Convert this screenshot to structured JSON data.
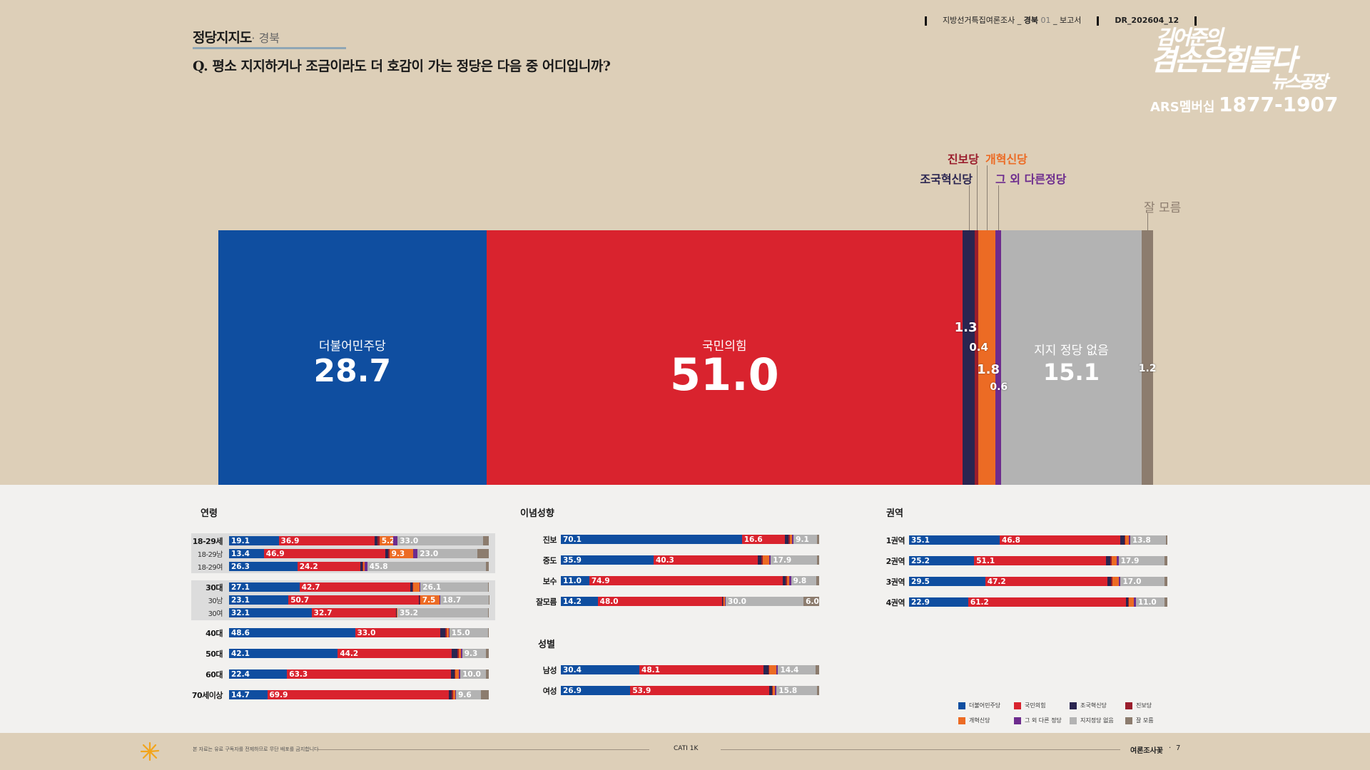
{
  "header": {
    "title": "정당지지도",
    "subtitle": "· 경북",
    "question": "Q. 평소 지지하거나 조금이라도 더 호감이 가는 정당은 다음 중 어디입니까?",
    "meta_survey": "지방선거특집여론조사 _",
    "meta_region": "경북",
    "meta_num": "01",
    "meta_report": "_ 보고서",
    "meta_code": "DR_202604_12"
  },
  "logo": {
    "line1": "김어준의",
    "line2": "겸손은힘들다",
    "line3": "뉴스공장",
    "ars_label": "ARS멤버십",
    "ars_number": "1877-1907"
  },
  "colors": {
    "minjoo": "#0f4ea0",
    "ppp": "#d9232e",
    "jokuk": "#2a2550",
    "jinbo": "#9a1d2c",
    "gaehyuk": "#ec6b24",
    "other": "#6d2c8e",
    "none": "#b3b3b3",
    "dk": "#8c7c6e"
  },
  "chart_data": [
    {
      "type": "bar",
      "stacked": true,
      "orientation": "horizontal",
      "series": [
        {
          "key": "minjoo",
          "name": "더불어민주당",
          "value": 28.7
        },
        {
          "key": "ppp",
          "name": "국민의힘",
          "value": 51.0
        },
        {
          "key": "jokuk",
          "name": "조국혁신당",
          "value": 1.3
        },
        {
          "key": "jinbo",
          "name": "진보당",
          "value": 0.4
        },
        {
          "key": "gaehyuk",
          "name": "개혁신당",
          "value": 1.8
        },
        {
          "key": "other",
          "name": "그 외 다른정당",
          "value": 0.6
        },
        {
          "key": "none",
          "name": "지지 정당 없음",
          "value": 15.1
        },
        {
          "key": "dk",
          "name": "잘 모름",
          "value": 1.2
        }
      ]
    },
    {
      "type": "bar",
      "stacked": true,
      "title": "연령",
      "rows": [
        {
          "label": "18-29세",
          "values": [
            19.1,
            36.9,
            1.2,
            0.7,
            5.2,
            1.8,
            33.0,
            2.1
          ]
        },
        {
          "label": "18-29남",
          "sub": true,
          "values": [
            13.4,
            46.9,
            0.9,
            0.5,
            9.3,
            1.6,
            23.0,
            4.4
          ]
        },
        {
          "label": "18-29여",
          "sub": true,
          "values": [
            26.3,
            24.2,
            0.8,
            0.4,
            0.5,
            1.0,
            45.8,
            1.0
          ]
        },
        {
          "label": "30대",
          "values": [
            27.1,
            42.7,
            0.8,
            0.2,
            2.6,
            0.3,
            26.1,
            0.2
          ]
        },
        {
          "label": "30남",
          "sub": true,
          "values": [
            23.1,
            50.7,
            0.4,
            0.1,
            7.5,
            0.4,
            18.7,
            0.1
          ]
        },
        {
          "label": "30여",
          "sub": true,
          "values": [
            32.1,
            32.7,
            0.3,
            0.1,
            0.2,
            0.1,
            35.2,
            0.3
          ]
        },
        {
          "label": "40대",
          "values": [
            48.6,
            33.0,
            1.9,
            0.5,
            0.8,
            0.2,
            15.0,
            0.2
          ]
        },
        {
          "label": "50대",
          "values": [
            42.1,
            44.2,
            2.2,
            0.4,
            0.9,
            0.5,
            9.3,
            1.0
          ]
        },
        {
          "label": "60대",
          "values": [
            22.4,
            63.3,
            1.3,
            0.3,
            1.5,
            0.5,
            10.0,
            1.0
          ]
        },
        {
          "label": "70세이상",
          "values": [
            14.7,
            69.9,
            1.2,
            0.4,
            0.8,
            0.4,
            9.6,
            3.0
          ]
        }
      ],
      "labels_shown": [
        [
          "19.1",
          "36.9",
          "",
          "",
          "5.2",
          "",
          "33.0",
          ""
        ],
        [
          "13.4",
          "46.9",
          "",
          "",
          "9.3",
          "",
          "23.0",
          ""
        ],
        [
          "26.3",
          "24.2",
          "",
          "",
          "",
          "",
          "45.8",
          ""
        ],
        [
          "27.1",
          "42.7",
          "",
          "",
          "",
          "",
          "26.1",
          ""
        ],
        [
          "23.1",
          "50.7",
          "",
          "",
          "7.5",
          "",
          "18.7",
          ""
        ],
        [
          "32.1",
          "32.7",
          "",
          "",
          "",
          "",
          "35.2",
          ""
        ],
        [
          "48.6",
          "33.0",
          "",
          "",
          "",
          "",
          "15.0",
          ""
        ],
        [
          "42.1",
          "44.2",
          "",
          "",
          "",
          "",
          "9.3",
          ""
        ],
        [
          "22.4",
          "63.3",
          "",
          "",
          "",
          "",
          "10.0",
          ""
        ],
        [
          "14.7",
          "69.9",
          "",
          "",
          "",
          "",
          "9.6",
          ""
        ]
      ]
    },
    {
      "type": "bar",
      "stacked": true,
      "title": "이념성향",
      "rows": [
        {
          "label": "진보",
          "values": [
            70.1,
            16.6,
            1.5,
            0.6,
            0.8,
            0.5,
            9.1,
            0.8
          ]
        },
        {
          "label": "중도",
          "values": [
            35.9,
            40.3,
            1.5,
            0.4,
            2.6,
            0.6,
            17.9,
            0.8
          ]
        },
        {
          "label": "보수",
          "values": [
            11.0,
            74.9,
            1.2,
            0.4,
            0.8,
            0.8,
            9.8,
            1.1
          ]
        },
        {
          "label": "잘모름",
          "values": [
            14.2,
            48.0,
            0.3,
            0.2,
            0.6,
            0.2,
            30.0,
            6.0
          ]
        }
      ],
      "labels_shown": [
        [
          "70.1",
          "16.6",
          "",
          "",
          "",
          "",
          "9.1",
          ""
        ],
        [
          "35.9",
          "40.3",
          "",
          "",
          "",
          "",
          "17.9",
          ""
        ],
        [
          "11.0",
          "74.9",
          "",
          "",
          "",
          "",
          "9.8",
          ""
        ],
        [
          "14.2",
          "48.0",
          "",
          "",
          "",
          "",
          "30.0",
          "6.0"
        ]
      ]
    },
    {
      "type": "bar",
      "stacked": true,
      "title": "성별",
      "rows": [
        {
          "label": "남성",
          "values": [
            30.4,
            48.1,
            1.8,
            0.5,
            2.6,
            0.7,
            14.4,
            1.5
          ]
        },
        {
          "label": "여성",
          "values": [
            26.9,
            53.9,
            1.0,
            0.3,
            0.9,
            0.5,
            15.8,
            0.7
          ]
        }
      ],
      "labels_shown": [
        [
          "30.4",
          "48.1",
          "",
          "",
          "",
          "",
          "14.4",
          ""
        ],
        [
          "26.9",
          "53.9",
          "",
          "",
          "",
          "",
          "15.8",
          ""
        ]
      ]
    },
    {
      "type": "bar",
      "stacked": true,
      "title": "권역",
      "rows": [
        {
          "label": "1권역",
          "values": [
            35.1,
            46.8,
            1.6,
            0.3,
            1.4,
            0.4,
            13.8,
            0.6
          ]
        },
        {
          "label": "2권역",
          "values": [
            25.2,
            51.1,
            1.6,
            0.5,
            2.1,
            0.6,
            17.9,
            1.0
          ]
        },
        {
          "label": "3권역",
          "values": [
            29.5,
            47.2,
            1.5,
            0.5,
            2.5,
            0.7,
            17.0,
            1.1
          ]
        },
        {
          "label": "4권역",
          "values": [
            22.9,
            61.2,
            0.6,
            0.3,
            1.9,
            0.9,
            11.0,
            1.2
          ]
        }
      ],
      "labels_shown": [
        [
          "35.1",
          "46.8",
          "",
          "",
          "",
          "",
          "13.8",
          ""
        ],
        [
          "25.2",
          "51.1",
          "",
          "",
          "",
          "",
          "17.9",
          ""
        ],
        [
          "29.5",
          "47.2",
          "",
          "",
          "",
          "",
          "17.0",
          ""
        ],
        [
          "22.9",
          "61.2",
          "",
          "",
          "",
          "",
          "11.0",
          ""
        ]
      ]
    }
  ],
  "legend": [
    {
      "key": "minjoo",
      "label": "더불어민주당"
    },
    {
      "key": "ppp",
      "label": "국민의힘"
    },
    {
      "key": "jokuk",
      "label": "조국혁신당"
    },
    {
      "key": "jinbo",
      "label": "진보당"
    },
    {
      "key": "gaehyuk",
      "label": "개혁신당"
    },
    {
      "key": "other",
      "label": "그 외 다른 정당"
    },
    {
      "key": "none",
      "label": "지지정당 없음"
    },
    {
      "key": "dk",
      "label": "잘 모름"
    }
  ],
  "footer": {
    "disclaimer": "본 자료는 유료 구독자를 전제하므로 무단 배포를 금지합니다",
    "method": "CATI 1K",
    "brand": "여론조사꽃",
    "page": "7"
  }
}
